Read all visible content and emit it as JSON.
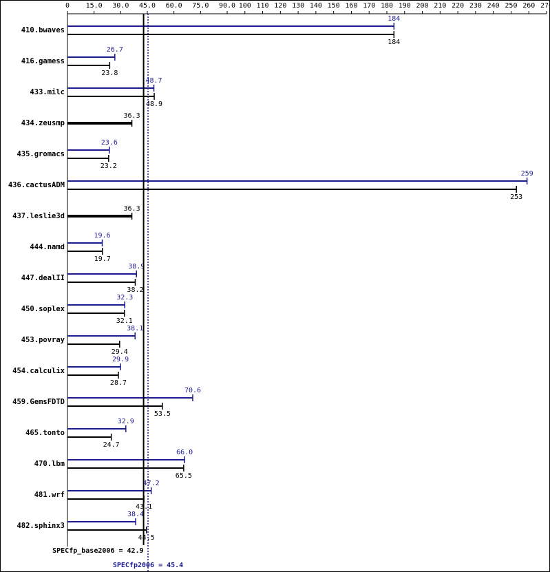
{
  "chart_data": {
    "type": "bar",
    "orientation": "horizontal",
    "categories": [
      "410.bwaves",
      "416.gamess",
      "433.milc",
      "434.zeusmp",
      "435.gromacs",
      "436.cactusADM",
      "437.leslie3d",
      "444.namd",
      "447.dealII",
      "450.soplex",
      "453.povray",
      "454.calculix",
      "459.GemsFDTD",
      "465.tonto",
      "470.lbm",
      "481.wrf",
      "482.sphinx3"
    ],
    "series": [
      {
        "name": "peak",
        "color": "#1a1a8c",
        "values": [
          184,
          26.7,
          48.7,
          null,
          23.6,
          259,
          null,
          19.6,
          38.9,
          32.3,
          38.1,
          29.9,
          70.6,
          32.9,
          66.0,
          47.2,
          38.4
        ],
        "value_labels": [
          "184",
          "26.7",
          "48.7",
          null,
          "23.6",
          "259",
          null,
          "19.6",
          "38.9",
          "32.3",
          "38.1",
          "29.9",
          "70.6",
          "32.9",
          "66.0",
          "47.2",
          "38.4"
        ]
      },
      {
        "name": "base",
        "color": "#000000",
        "values": [
          184,
          23.8,
          48.9,
          36.3,
          23.2,
          253,
          36.3,
          19.7,
          38.2,
          32.1,
          29.4,
          28.7,
          53.5,
          24.7,
          65.5,
          43.1,
          44.5
        ],
        "value_labels": [
          "184",
          "23.8",
          "48.9",
          "36.3",
          "23.2",
          "253",
          "36.3",
          "19.7",
          "38.2",
          "32.1",
          "29.4",
          "28.7",
          "53.5",
          "24.7",
          "65.5",
          "43.1",
          "44.5"
        ]
      }
    ],
    "xlim": [
      0,
      270
    ],
    "xticks": [
      0,
      {
        "value": 15,
        "label": "15.0"
      },
      {
        "value": 30,
        "label": "30.0"
      },
      {
        "value": 45,
        "label": "45.0"
      },
      {
        "value": 60,
        "label": "60.0"
      },
      {
        "value": 75,
        "label": "75.0"
      },
      {
        "value": 90,
        "label": "90.0"
      },
      100,
      110,
      120,
      130,
      140,
      150,
      160,
      170,
      180,
      190,
      200,
      210,
      220,
      230,
      240,
      250,
      260,
      270
    ],
    "reference_lines": [
      {
        "value": 42.9,
        "label": "SPECfp_base2006 = 42.9",
        "color": "#000000",
        "style": "solid"
      },
      {
        "value": 45.4,
        "label": "SPECfp2006 = 45.4",
        "color": "#1a1a8c",
        "style": "dotted"
      }
    ]
  }
}
